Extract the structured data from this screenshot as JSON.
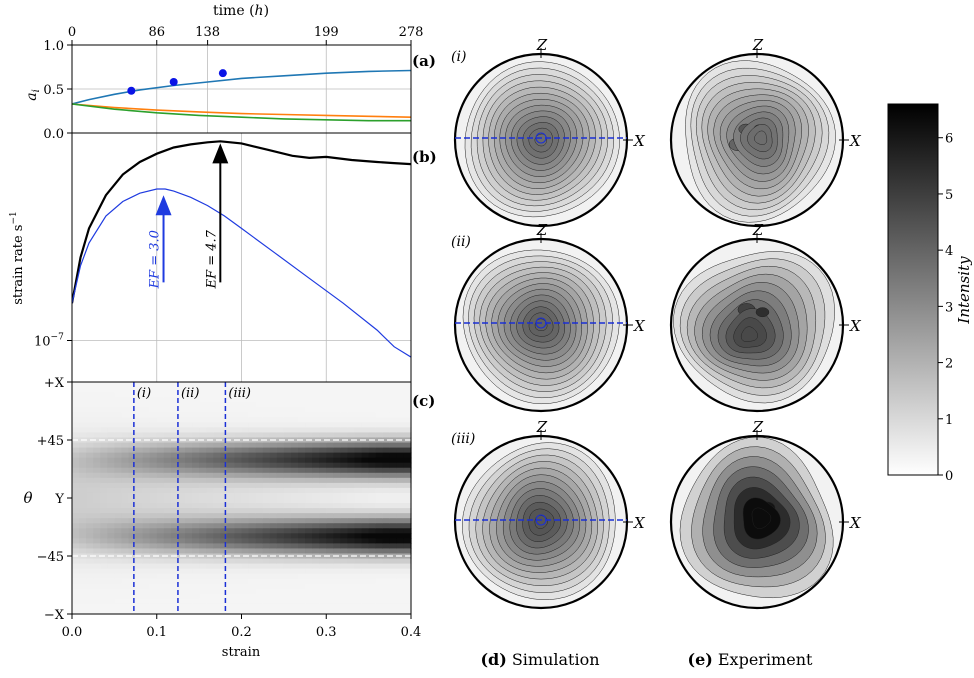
{
  "chart_data": [
    {
      "panel": "a",
      "panel_label": "(a)",
      "type": "line",
      "top_axis": {
        "label_prefix": "time (",
        "label_var": "h",
        "label_suffix": ")",
        "ticks": [
          "0",
          "86",
          "138",
          "199",
          "278"
        ],
        "tick_positions_strain": [
          0.0,
          0.1,
          0.16,
          0.3,
          0.4
        ]
      },
      "ylabel_var": "a",
      "ylabel_sub": "i",
      "yticks": [
        {
          "v": 0.0,
          "label": "0.0"
        },
        {
          "v": 0.5,
          "label": "0.5"
        },
        {
          "v": 1.0,
          "label": "1.0"
        }
      ],
      "ylim": [
        0,
        1
      ],
      "xlim": [
        0,
        0.4
      ],
      "series": [
        {
          "color": "#1f77b4",
          "x": [
            0,
            0.02,
            0.05,
            0.08,
            0.12,
            0.16,
            0.2,
            0.25,
            0.3,
            0.35,
            0.4
          ],
          "y": [
            0.33,
            0.38,
            0.44,
            0.49,
            0.54,
            0.58,
            0.62,
            0.65,
            0.68,
            0.7,
            0.71
          ]
        },
        {
          "color": "#ff7f0e",
          "x": [
            0,
            0.05,
            0.1,
            0.15,
            0.2,
            0.25,
            0.3,
            0.35,
            0.4
          ],
          "y": [
            0.33,
            0.29,
            0.26,
            0.24,
            0.22,
            0.21,
            0.2,
            0.19,
            0.18
          ]
        },
        {
          "color": "#2ca02c",
          "x": [
            0,
            0.05,
            0.1,
            0.15,
            0.2,
            0.25,
            0.3,
            0.35,
            0.4
          ],
          "y": [
            0.33,
            0.27,
            0.23,
            0.2,
            0.18,
            0.16,
            0.15,
            0.14,
            0.14
          ]
        }
      ],
      "points": {
        "color": "#0a14e6",
        "x": [
          0.07,
          0.12,
          0.178
        ],
        "y": [
          0.48,
          0.58,
          0.68
        ]
      }
    },
    {
      "panel": "b",
      "panel_label": "(b)",
      "type": "line",
      "ylabel": "strain rate s",
      "ylabel_exp": "−1",
      "yscale": "log",
      "ytick_label": "10",
      "ytick_exp": "−7",
      "ylim_log10": [
        -7.2,
        -6.0
      ],
      "xlim": [
        0,
        0.4
      ],
      "series": [
        {
          "color": "#000000",
          "x": [
            0,
            0.01,
            0.02,
            0.04,
            0.06,
            0.08,
            0.1,
            0.12,
            0.14,
            0.16,
            0.175,
            0.2,
            0.23,
            0.26,
            0.28,
            0.3,
            0.33,
            0.36,
            0.38,
            0.4
          ],
          "y_log10": [
            -6.82,
            -6.6,
            -6.46,
            -6.3,
            -6.2,
            -6.14,
            -6.1,
            -6.07,
            -6.055,
            -6.045,
            -6.04,
            -6.05,
            -6.08,
            -6.11,
            -6.12,
            -6.115,
            -6.13,
            -6.14,
            -6.145,
            -6.15
          ]
        },
        {
          "color": "#1f3be0",
          "x": [
            0,
            0.01,
            0.02,
            0.04,
            0.06,
            0.08,
            0.1,
            0.11,
            0.12,
            0.14,
            0.16,
            0.18,
            0.2,
            0.24,
            0.28,
            0.32,
            0.36,
            0.38,
            0.4
          ],
          "y_log10": [
            -6.82,
            -6.64,
            -6.53,
            -6.4,
            -6.33,
            -6.29,
            -6.27,
            -6.27,
            -6.28,
            -6.31,
            -6.35,
            -6.4,
            -6.46,
            -6.58,
            -6.7,
            -6.82,
            -6.95,
            -7.03,
            -7.08
          ]
        }
      ],
      "annotations": [
        {
          "text": "EF = 3.0",
          "color": "#1f3be0",
          "x": 0.108,
          "y_from": -6.72,
          "y_to": -6.3
        },
        {
          "text": "EF = 4.7",
          "color": "#000000",
          "x": 0.175,
          "y_from": -6.72,
          "y_to": -6.05
        }
      ]
    },
    {
      "panel": "c",
      "panel_label": "(c)",
      "type": "heatmap",
      "xlabel": "strain",
      "xticks": [
        "0.0",
        "0.1",
        "0.2",
        "0.3",
        "0.4"
      ],
      "xlim": [
        0,
        0.4
      ],
      "ylabel": "θ",
      "yticks": [
        "+X",
        "+45",
        "Y",
        "−45",
        "−X"
      ],
      "ytick_values": [
        90,
        45,
        0,
        -45,
        -90
      ],
      "ylim": [
        -90,
        90
      ],
      "hlines": [
        45,
        -45
      ],
      "vlines": [
        {
          "x": 0.073,
          "label": "(i)"
        },
        {
          "x": 0.125,
          "label": "(ii)"
        },
        {
          "x": 0.181,
          "label": "(iii)"
        }
      ],
      "peak_theta": [
        30,
        -30
      ]
    },
    {
      "panel": "d",
      "type": "contour",
      "caption_label": "(d)",
      "caption_text": "Simulation",
      "row_labels": [
        "(i)",
        "(ii)",
        "(iii)"
      ],
      "axis_labels": {
        "top": "Z",
        "right": "X"
      }
    },
    {
      "panel": "e",
      "type": "contour",
      "caption_label": "(e)",
      "caption_text": "Experiment",
      "axis_labels": {
        "top": "Z",
        "right": "X"
      }
    },
    {
      "panel": "colorbar",
      "type": "heatmap",
      "label": "Intensity",
      "range": [
        0,
        6.6
      ],
      "ticks": [
        "0",
        "1",
        "2",
        "3",
        "4",
        "5",
        "6"
      ]
    }
  ]
}
